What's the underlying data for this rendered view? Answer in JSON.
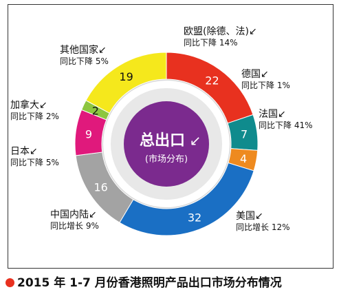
{
  "chart_data": {
    "type": "donut",
    "center_title": "总出口",
    "center_subtitle": "(市场分布)",
    "slices": [
      {
        "label": "欧盟(除德、法)",
        "value": 22,
        "value_label": "22",
        "change": "同比下降 14%",
        "color": "#e8311f"
      },
      {
        "label": "德国",
        "value": 7,
        "value_label": "7",
        "change": "同比下降 1%",
        "color": "#0f8b8d"
      },
      {
        "label": "法国",
        "value": 4,
        "value_label": "4",
        "change": "同比下降 41%",
        "color": "#ee8a1f"
      },
      {
        "label": "美国",
        "value": 32,
        "value_label": "32",
        "change": "同比增长 12%",
        "color": "#1a6fc4"
      },
      {
        "label": "中国内陆",
        "value": 16,
        "value_label": "16",
        "change": "同比增长 9%",
        "color": "#a3a3a3"
      },
      {
        "label": "日本",
        "value": 9,
        "value_label": "9",
        "change": "同比下降 5%",
        "color": "#e0197c"
      },
      {
        "label": "加拿大",
        "value": 2,
        "value_label": "2",
        "change": "同比下降 2%",
        "color": "#8dc63f"
      },
      {
        "label": "其他国家",
        "value": 19,
        "value_label": "19",
        "change": "同比下降 5%",
        "color": "#f5e81c"
      }
    ],
    "center_color": "#7b2a8e",
    "ring_shadow_color": "#d9d9d9"
  },
  "caption": "2015 年 1-7 月份香港照明产品出口市场分布情况",
  "caption_dot_color": "#e8311f",
  "arrow_icon": "↙"
}
